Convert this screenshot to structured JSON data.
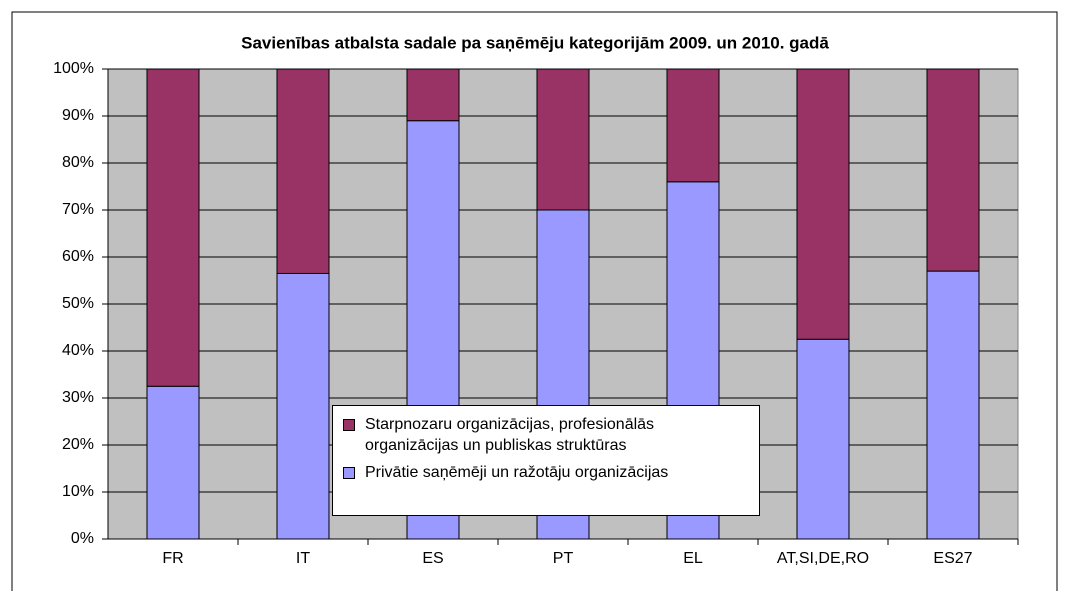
{
  "chart_data": {
    "type": "stacked_bar",
    "title": "Savienības atbalsta sadale pa saņēmēju kategorijām 2009. un 2010. gadā",
    "categories": [
      "FR",
      "IT",
      "ES",
      "PT",
      "EL",
      "AT,SI,DE,RO",
      "ES27"
    ],
    "series": [
      {
        "name": "Privātie saņēmēji un ražotāju organizācijas",
        "color": "#9999ff",
        "values": [
          32.5,
          56.5,
          89,
          70,
          76,
          42.5,
          57
        ]
      },
      {
        "name": "Starpnozaru organizācijas, profesionālās organizācijas un publiskas struktūras",
        "color": "#993366",
        "values": [
          67.5,
          43.5,
          11,
          30,
          24,
          57.5,
          43
        ]
      }
    ],
    "ylim": [
      0,
      100
    ],
    "yticks": [
      {
        "value": 0,
        "label": "0%"
      },
      {
        "value": 10,
        "label": "10%"
      },
      {
        "value": 20,
        "label": "20%"
      },
      {
        "value": 30,
        "label": "30%"
      },
      {
        "value": 40,
        "label": "40%"
      },
      {
        "value": 50,
        "label": "50%"
      },
      {
        "value": 60,
        "label": "60%"
      },
      {
        "value": 70,
        "label": "70%"
      },
      {
        "value": 80,
        "label": "80%"
      },
      {
        "value": 90,
        "label": "90%"
      },
      {
        "value": 100,
        "label": "100%"
      }
    ],
    "grid": true,
    "plot_background": "#c0c0c0"
  }
}
